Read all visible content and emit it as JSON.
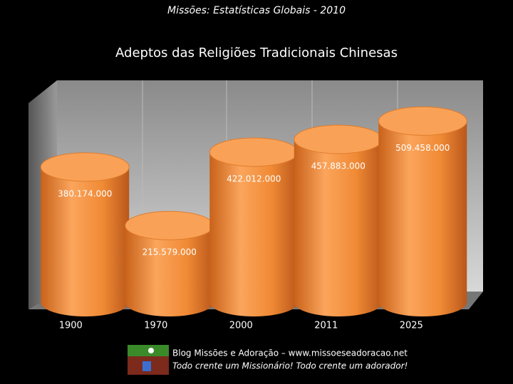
{
  "header": "Missões: Estatísticas Globais - 2010",
  "chart_data": {
    "type": "bar",
    "title": "Adeptos das Religiões Tradicionais Chinesas",
    "categories": [
      "1900",
      "1970",
      "2000",
      "2011",
      "2025"
    ],
    "values": [
      380174000,
      215579000,
      422012000,
      457883000,
      509458000
    ],
    "value_labels": [
      "380.174.000",
      "215.579.000",
      "422.012.000",
      "457.883.000",
      "509.458.000"
    ],
    "color": "#f5923e",
    "ylim": [
      0,
      600000000
    ]
  },
  "footer": {
    "line1": "Blog Missões e Adoração – www.missoeseadoracao.net",
    "line2": "Todo crente um Missionário! Todo crente um adorador!"
  }
}
